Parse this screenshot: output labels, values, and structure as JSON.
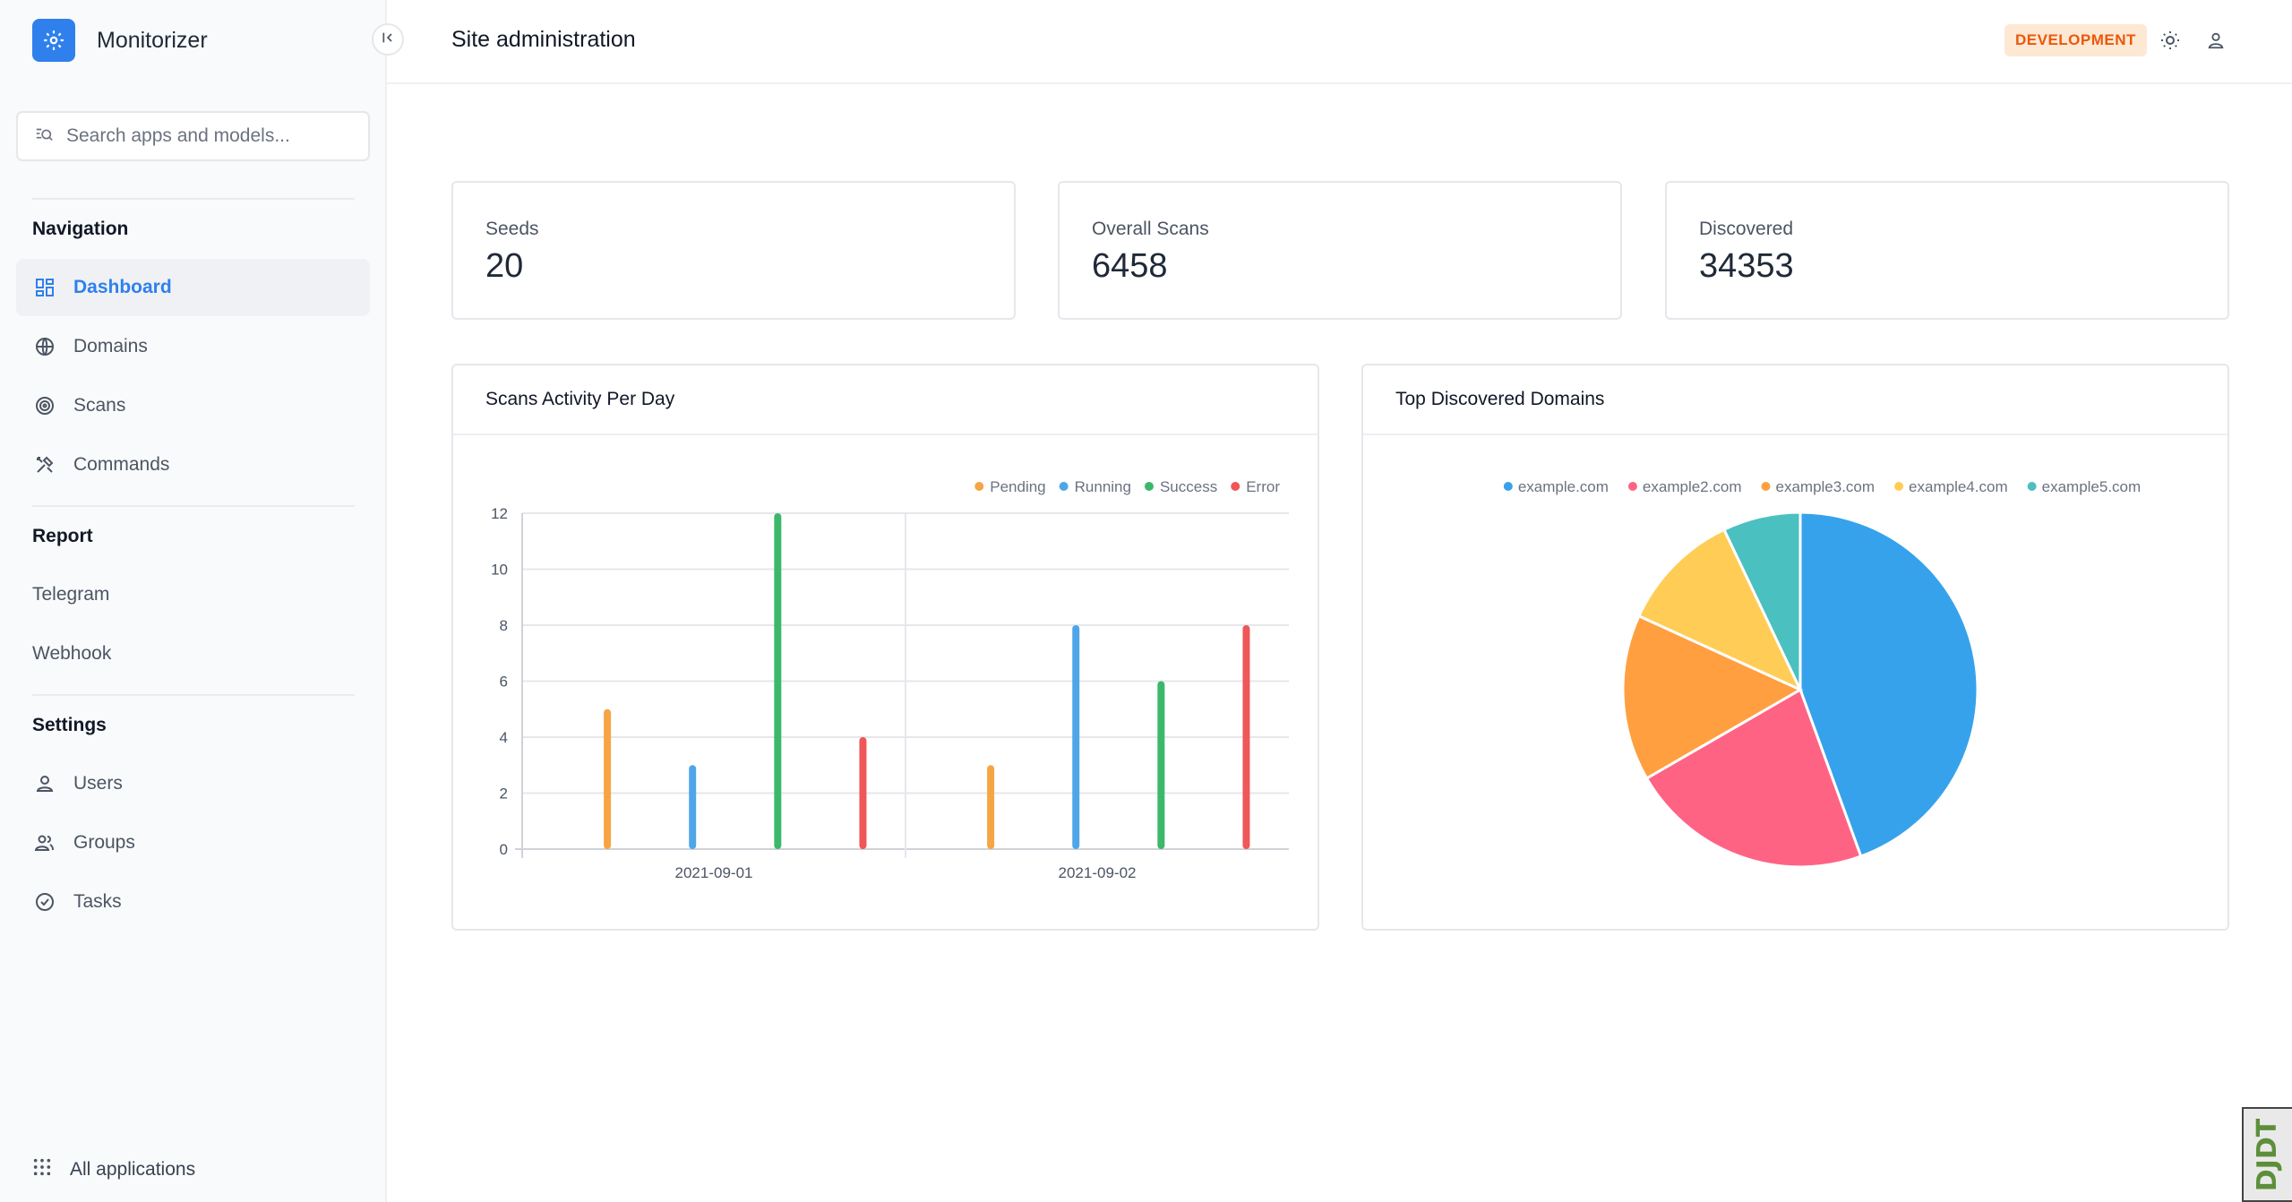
{
  "brand": {
    "name": "Monitorizer",
    "accent": "#2f80ed"
  },
  "search": {
    "placeholder": "Search apps and models..."
  },
  "sidebar": {
    "navigation_title": "Navigation",
    "navigation": [
      {
        "label": "Dashboard",
        "icon": "dashboard-icon",
        "active": true
      },
      {
        "label": "Domains",
        "icon": "globe-icon"
      },
      {
        "label": "Scans",
        "icon": "target-icon"
      },
      {
        "label": "Commands",
        "icon": "tools-icon"
      }
    ],
    "report_title": "Report",
    "report": [
      {
        "label": "Telegram"
      },
      {
        "label": "Webhook"
      }
    ],
    "settings_title": "Settings",
    "settings": [
      {
        "label": "Users",
        "icon": "user-icon"
      },
      {
        "label": "Groups",
        "icon": "group-icon"
      },
      {
        "label": "Tasks",
        "icon": "check-circle-icon"
      }
    ],
    "all_apps": "All applications"
  },
  "header": {
    "title": "Site administration",
    "env_badge": "DEVELOPMENT",
    "icons": [
      "sun-icon",
      "account-icon"
    ]
  },
  "stats": [
    {
      "label": "Seeds",
      "value": "20"
    },
    {
      "label": "Overall Scans",
      "value": "6458"
    },
    {
      "label": "Discovered",
      "value": "34353"
    }
  ],
  "panels": {
    "scans_title": "Scans Activity Per Day",
    "domains_title": "Top Discovered Domains"
  },
  "debug_toolbar": {
    "label": "DJDT"
  },
  "chart_data": [
    {
      "type": "bar",
      "title": "Scans Activity Per Day",
      "categories": [
        "2021-09-01",
        "2021-09-02"
      ],
      "series": [
        {
          "name": "Pending",
          "color": "#f6a544",
          "values": [
            5,
            3
          ]
        },
        {
          "name": "Running",
          "color": "#4ea6e8",
          "values": [
            3,
            8
          ]
        },
        {
          "name": "Success",
          "color": "#3cb86a",
          "values": [
            12,
            6
          ]
        },
        {
          "name": "Error",
          "color": "#ef5758",
          "values": [
            4,
            8
          ]
        }
      ],
      "ylim": [
        0,
        12
      ],
      "yticks": [
        0,
        2,
        4,
        6,
        8,
        10,
        12
      ],
      "grid": true,
      "legend": "top-right"
    },
    {
      "type": "pie",
      "title": "Top Discovered Domains",
      "labels": [
        "example.com",
        "example2.com",
        "example3.com",
        "example4.com",
        "example5.com"
      ],
      "values": [
        44,
        22,
        15,
        11,
        7
      ],
      "colors": [
        "#36a2eb",
        "#ff6384",
        "#ff9f40",
        "#ffcd56",
        "#4bc0c0"
      ],
      "legend": "top"
    }
  ]
}
